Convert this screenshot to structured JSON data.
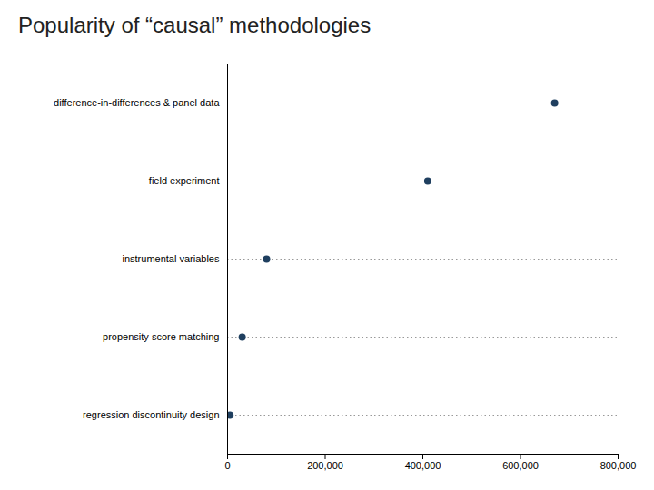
{
  "chart_data": {
    "type": "dot",
    "orientation": "horizontal",
    "title": "Popularity of “causal” methodologies",
    "categories": [
      "regression discontinuity design",
      "propensity score matching",
      "instrumental variables",
      "field experiment",
      "difference-in-differences & panel data"
    ],
    "values": [
      5000,
      30000,
      80000,
      410000,
      670000
    ],
    "color": "#1f3f5f",
    "line_style": "dotted",
    "xlim": [
      0,
      800000
    ],
    "xticks": [
      0,
      {
        "value": 200000,
        "label": "200,000"
      },
      {
        "value": 400000,
        "label": "400,000"
      },
      {
        "value": 600000,
        "label": "600,000"
      },
      {
        "value": 800000,
        "label": "800,000"
      }
    ],
    "grid": false
  }
}
